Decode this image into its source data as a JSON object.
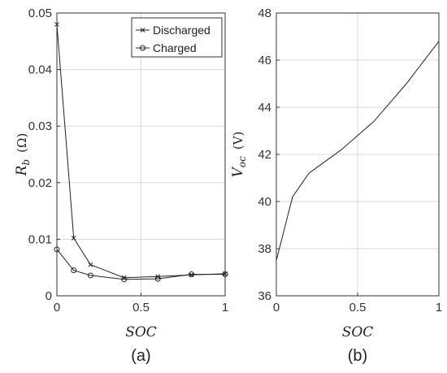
{
  "chart_data": [
    {
      "type": "line",
      "panel_label": "(a)",
      "xlabel": "SOC",
      "ylabel": "R_b  (Ω)",
      "ylabel_main": "R",
      "ylabel_sub": "b",
      "ylabel_unit": "(Ω)",
      "xlim": [
        0,
        1
      ],
      "ylim": [
        0,
        0.05
      ],
      "xticks": [
        0,
        0.5,
        1
      ],
      "xtick_labels": [
        "0",
        "0.5",
        "1"
      ],
      "yticks": [
        0,
        0.01,
        0.02,
        0.03,
        0.04,
        0.05
      ],
      "ytick_labels": [
        "0",
        "0.01",
        "0.02",
        "0.03",
        "0.04",
        "0.05"
      ],
      "grid": true,
      "legend_position": "top-right",
      "series": [
        {
          "name": "Discharged",
          "marker": "x",
          "x": [
            0,
            0.1,
            0.2,
            0.4,
            0.6,
            0.8,
            1.0
          ],
          "y": [
            0.048,
            0.0102,
            0.0055,
            0.0032,
            0.0034,
            0.0037,
            0.0039
          ]
        },
        {
          "name": "Charged",
          "marker": "circle",
          "x": [
            0,
            0.1,
            0.2,
            0.4,
            0.6,
            0.8,
            1.0
          ],
          "y": [
            0.0082,
            0.0045,
            0.0036,
            0.0029,
            0.003,
            0.0038,
            0.0038
          ]
        }
      ]
    },
    {
      "type": "line",
      "panel_label": "(b)",
      "xlabel": "SOC",
      "ylabel": "V_oc  (V)",
      "ylabel_main": "V",
      "ylabel_sub": "oc",
      "ylabel_unit": "(V)",
      "xlim": [
        0,
        1
      ],
      "ylim": [
        36,
        48
      ],
      "xticks": [
        0,
        0.5,
        1
      ],
      "xtick_labels": [
        "0",
        "0.5",
        "1"
      ],
      "yticks": [
        36,
        38,
        40,
        42,
        44,
        46,
        48
      ],
      "ytick_labels": [
        "36",
        "38",
        "40",
        "42",
        "44",
        "46",
        "48"
      ],
      "grid": true,
      "series": [
        {
          "x": [
            0,
            0.1,
            0.2,
            0.4,
            0.6,
            0.8,
            1.0
          ],
          "y": [
            37.5,
            40.2,
            41.2,
            42.2,
            43.4,
            45.0,
            46.8
          ]
        }
      ]
    }
  ],
  "colors": {
    "axis": "#333333",
    "grid": "#d9d9d9",
    "line": "#222222"
  }
}
